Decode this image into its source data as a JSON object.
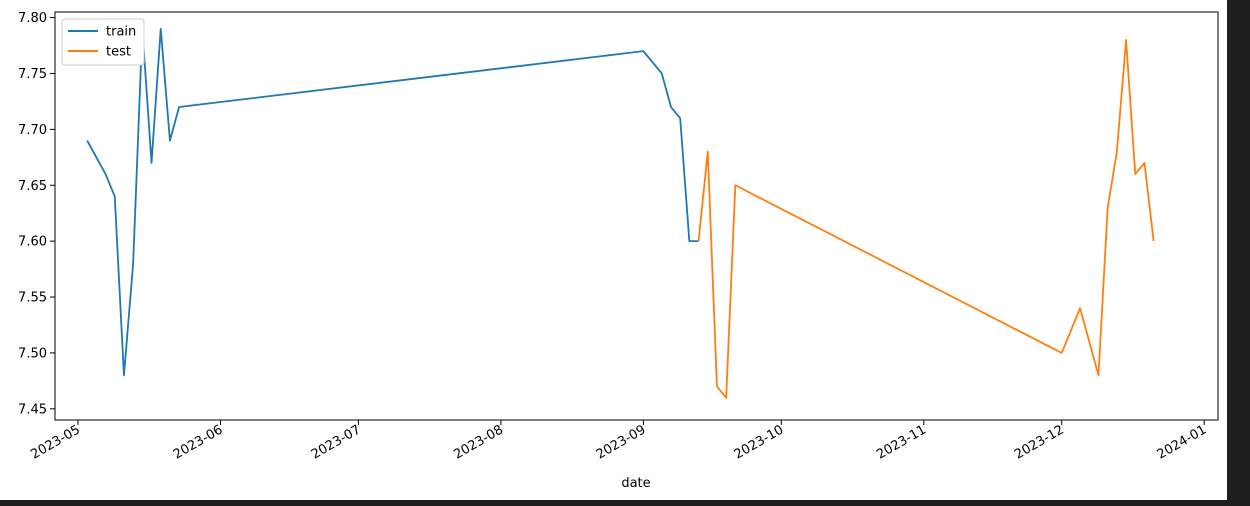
{
  "chart_data": {
    "type": "line",
    "title": "",
    "xlabel": "date",
    "ylabel": "",
    "x_ticks": [
      "2023-05",
      "2023-06",
      "2023-07",
      "2023-08",
      "2023-09",
      "2023-10",
      "2023-11",
      "2023-12",
      "2024-01"
    ],
    "y_ticks": [
      "7.45",
      "7.50",
      "7.55",
      "7.60",
      "7.65",
      "7.70",
      "7.75",
      "7.80"
    ],
    "xlim": [
      "2023-04-26",
      "2024-01-04"
    ],
    "ylim": [
      7.44,
      7.805
    ],
    "grid": false,
    "legend_position": "top-left",
    "series": [
      {
        "name": "train",
        "color": "#1f77b4",
        "points": [
          {
            "x": "2023-05-03",
            "y": 7.69
          },
          {
            "x": "2023-05-07",
            "y": 7.66
          },
          {
            "x": "2023-05-09",
            "y": 7.64
          },
          {
            "x": "2023-05-11",
            "y": 7.48
          },
          {
            "x": "2023-05-12",
            "y": 7.53
          },
          {
            "x": "2023-05-13",
            "y": 7.58
          },
          {
            "x": "2023-05-15",
            "y": 7.79
          },
          {
            "x": "2023-05-17",
            "y": 7.67
          },
          {
            "x": "2023-05-18",
            "y": 7.73
          },
          {
            "x": "2023-05-19",
            "y": 7.79
          },
          {
            "x": "2023-05-21",
            "y": 7.69
          },
          {
            "x": "2023-05-23",
            "y": 7.72
          },
          {
            "x": "2023-09-01",
            "y": 7.77
          },
          {
            "x": "2023-09-05",
            "y": 7.75
          },
          {
            "x": "2023-09-07",
            "y": 7.72
          },
          {
            "x": "2023-09-09",
            "y": 7.71
          },
          {
            "x": "2023-09-11",
            "y": 7.6
          },
          {
            "x": "2023-09-13",
            "y": 7.6
          }
        ]
      },
      {
        "name": "test",
        "color": "#ff7f0e",
        "points": [
          {
            "x": "2023-09-13",
            "y": 7.6
          },
          {
            "x": "2023-09-15",
            "y": 7.68
          },
          {
            "x": "2023-09-17",
            "y": 7.47
          },
          {
            "x": "2023-09-19",
            "y": 7.46
          },
          {
            "x": "2023-09-21",
            "y": 7.65
          },
          {
            "x": "2023-12-01",
            "y": 7.5
          },
          {
            "x": "2023-12-05",
            "y": 7.54
          },
          {
            "x": "2023-12-09",
            "y": 7.48
          },
          {
            "x": "2023-12-11",
            "y": 7.63
          },
          {
            "x": "2023-12-13",
            "y": 7.68
          },
          {
            "x": "2023-12-15",
            "y": 7.78
          },
          {
            "x": "2023-12-17",
            "y": 7.66
          },
          {
            "x": "2023-12-19",
            "y": 7.67
          },
          {
            "x": "2023-12-21",
            "y": 7.6
          }
        ]
      }
    ]
  }
}
